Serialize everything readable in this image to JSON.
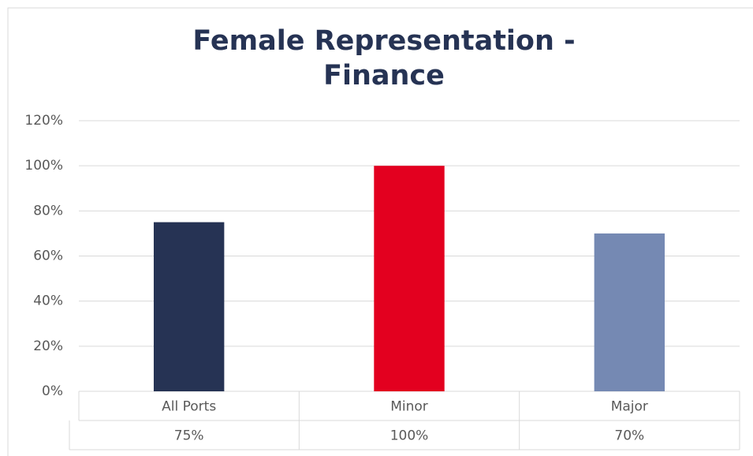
{
  "chart_data": {
    "type": "bar",
    "title": "Female Representation - Finance",
    "categories": [
      "All Ports",
      "Minor",
      "Major"
    ],
    "values": [
      75,
      100,
      70
    ],
    "value_labels": [
      "75%",
      "100%",
      "70%"
    ],
    "colors": [
      "#263354",
      "#e3001f",
      "#7589b3"
    ],
    "ylim": [
      0,
      120
    ],
    "yticks": [
      {
        "value": 0,
        "label": "0%"
      },
      {
        "value": 20,
        "label": "20%"
      },
      {
        "value": 40,
        "label": "40%"
      },
      {
        "value": 60,
        "label": "60%"
      },
      {
        "value": 80,
        "label": "80%"
      },
      {
        "value": 100,
        "label": "100%"
      },
      {
        "value": 120,
        "label": "120%"
      }
    ],
    "grid": true
  }
}
